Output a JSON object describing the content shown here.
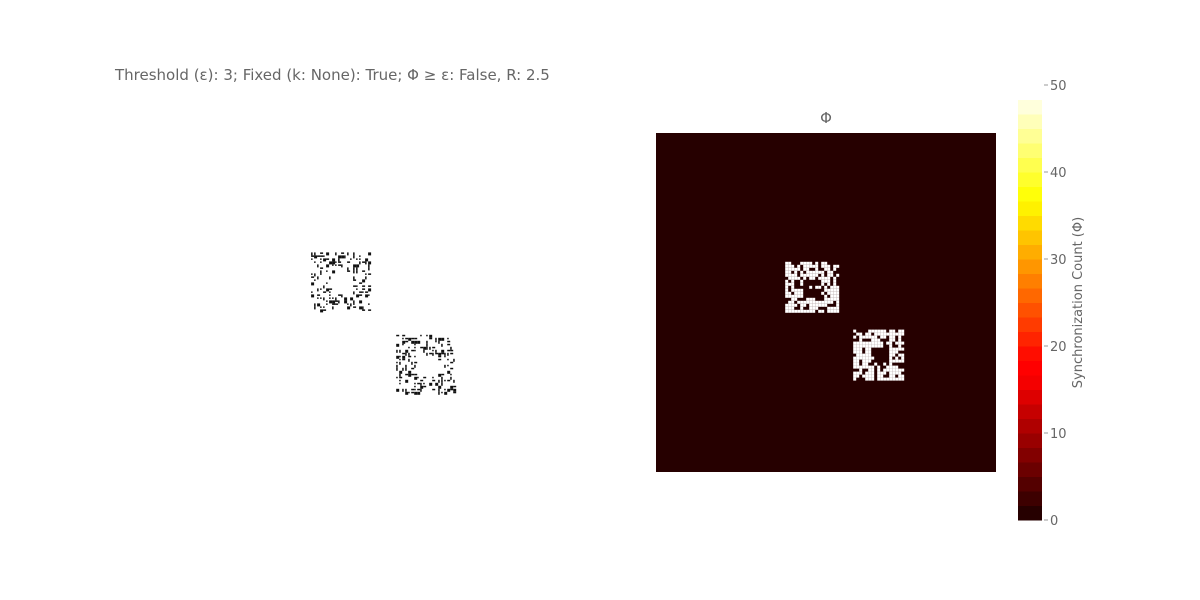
{
  "title": "Threshold (ε): 3; Fixed (k: None): True; Φ ≥ ε: False, R: 2.5",
  "chart_data": [
    {
      "type": "heatmap",
      "panel": "left",
      "description_of_content": "binary edge map (black noisy outlines of two square rings on white)",
      "grid": "off",
      "regions": [
        {
          "name": "upper-left ring",
          "grid_x_range": [
            0.43,
            0.59
          ],
          "grid_y_range": [
            0.37,
            0.51
          ]
        },
        {
          "name": "lower-right ring",
          "grid_x_range": [
            0.66,
            0.82
          ],
          "grid_y_range": [
            0.57,
            0.71
          ]
        }
      ]
    },
    {
      "type": "heatmap",
      "panel": "right",
      "title": "Φ",
      "colorscale": "hot",
      "background_value": 0,
      "ring_value": 50,
      "regions": [
        {
          "name": "upper-left ring",
          "grid_x_range": [
            0.38,
            0.53
          ],
          "grid_y_range": [
            0.38,
            0.53
          ]
        },
        {
          "name": "lower-right ring",
          "grid_x_range": [
            0.58,
            0.73
          ],
          "grid_y_range": [
            0.58,
            0.73
          ]
        }
      ],
      "colorbar": {
        "title": "Synchronization Count (Φ)",
        "range": [
          0,
          50
        ],
        "ticks": [
          0,
          10,
          20,
          30,
          40,
          50
        ],
        "tick_labels": [
          "0",
          "10",
          "20",
          "30",
          "40",
          "50"
        ]
      }
    }
  ]
}
